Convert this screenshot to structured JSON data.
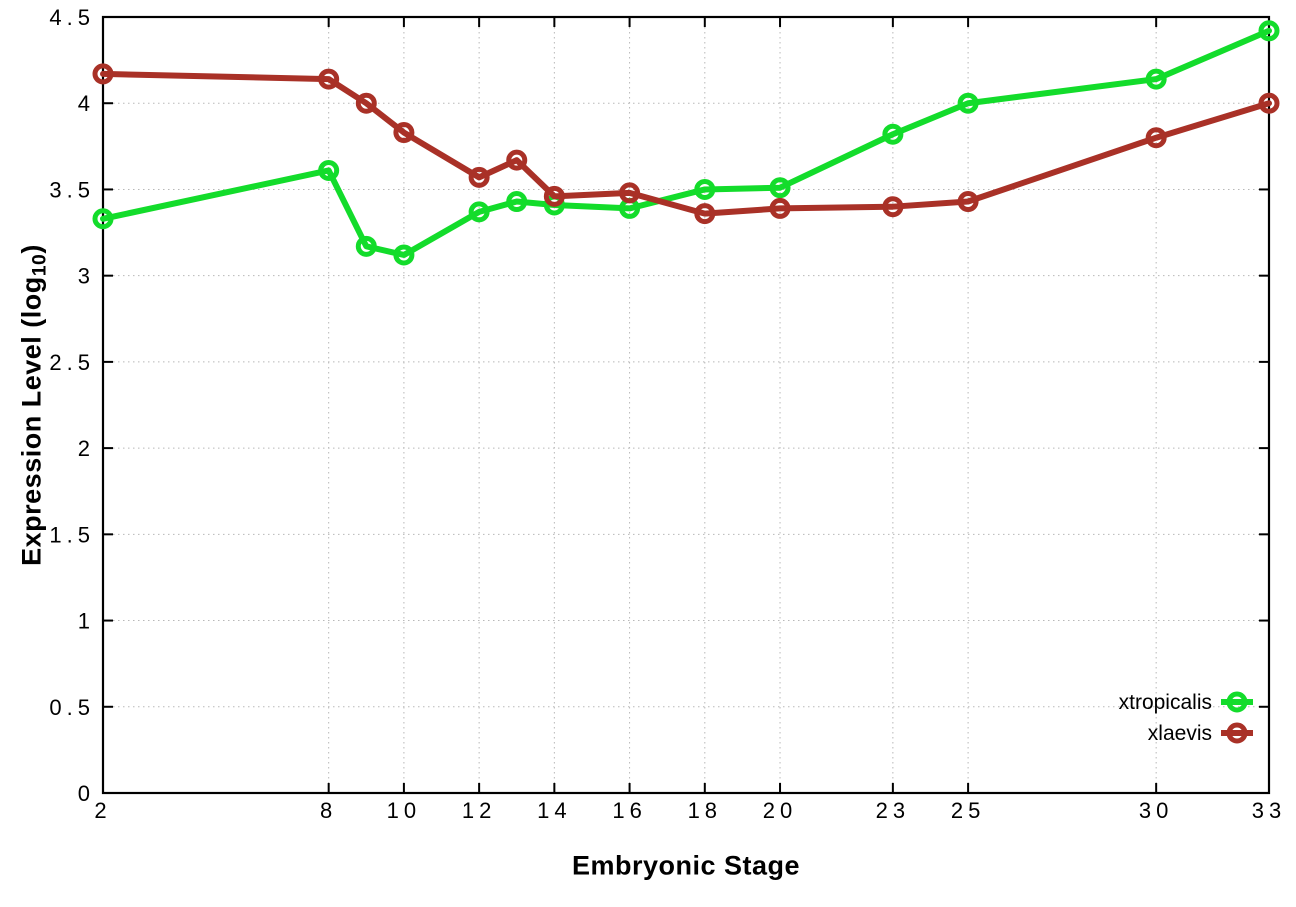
{
  "chart_data": {
    "type": "line",
    "title": "",
    "xlabel": "Embryonic Stage",
    "ylabel": {
      "prefix": "Expression Level (log",
      "sub": "10",
      "suffix": ")"
    },
    "x": [
      2,
      8,
      9,
      10,
      12,
      13,
      14,
      16,
      18,
      20,
      23,
      25,
      30,
      33
    ],
    "series": [
      {
        "name": "xtropicalis",
        "color": "#13dc2b",
        "values": [
          3.33,
          3.61,
          3.17,
          3.12,
          3.37,
          3.43,
          3.41,
          3.39,
          3.5,
          3.51,
          3.82,
          4.0,
          4.14,
          4.42
        ]
      },
      {
        "name": "xlaevis",
        "color": "#a93127",
        "values": [
          4.17,
          4.14,
          4.0,
          3.83,
          3.57,
          3.67,
          3.46,
          3.48,
          3.36,
          3.39,
          3.4,
          3.43,
          3.8,
          4.0
        ]
      }
    ],
    "x_ticks": [
      2,
      8,
      10,
      12,
      14,
      16,
      18,
      20,
      23,
      25,
      30,
      33
    ],
    "x_tick_labels": [
      "2",
      "8",
      "10",
      "12",
      "14",
      "16",
      "18",
      "20",
      "23",
      "25",
      "30",
      "33"
    ],
    "y_ticks": [
      0,
      0.5,
      1,
      1.5,
      2,
      2.5,
      3,
      3.5,
      4,
      4.5
    ],
    "y_tick_labels": [
      "0",
      "0.5",
      "1",
      "1.5",
      "2",
      "2.5",
      "3",
      "3.5",
      "4",
      "4.5"
    ],
    "xlim": [
      2,
      33
    ],
    "ylim": [
      0,
      4.5
    ],
    "grid": true,
    "legend_position": "inside-bottom-right",
    "axis_color": "#000000",
    "grid_color": "#b8b8b8",
    "background_color": "#ffffff"
  }
}
